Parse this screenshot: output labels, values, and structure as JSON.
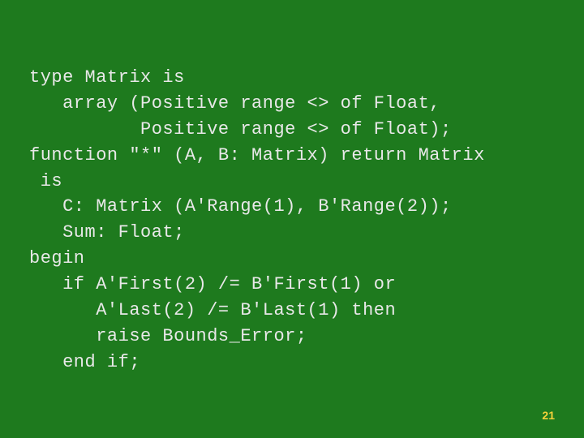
{
  "slide": {
    "background_color": "#1e7a1e",
    "text_color": "#e8e8e8",
    "page_number_color": "#f5d23a",
    "font_family": "Courier New, monospace",
    "font_size_pt": 18,
    "line_height": 1.45,
    "code_lines": [
      "type Matrix is",
      "   array (Positive range <> of Float,",
      "          Positive range <> of Float);",
      "function \"*\" (A, B: Matrix) return Matrix",
      " is",
      "   C: Matrix (A'Range(1), B'Range(2));",
      "   Sum: Float;",
      "begin",
      "   if A'First(2) /= B'First(1) or",
      "      A'Last(2) /= B'Last(1) then",
      "      raise Bounds_Error;",
      "   end if;"
    ],
    "page_number": "21"
  }
}
